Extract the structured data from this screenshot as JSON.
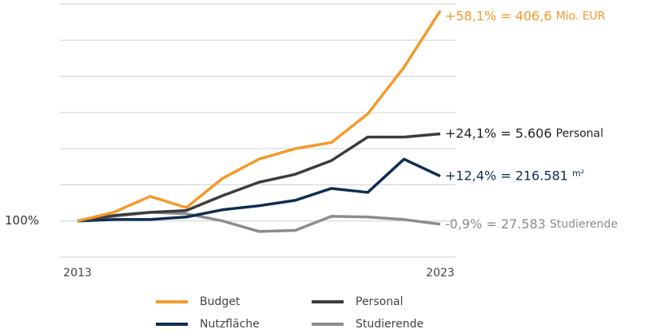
{
  "chart_data": {
    "type": "line",
    "categories": [
      "2013",
      null,
      null,
      null,
      null,
      null,
      null,
      null,
      null,
      null,
      "2023"
    ],
    "ylim": [
      90,
      160
    ],
    "yticks": [
      {
        "value": 100,
        "label": "100%"
      }
    ],
    "gridlines": [
      90,
      100,
      110,
      120,
      130,
      140,
      150,
      160
    ],
    "series": [
      {
        "name": "Budget",
        "color": "#f39a2b",
        "label_color": "#f39a2b",
        "end_label": "+58,1% = 406,6",
        "end_unit": "Mio. EUR",
        "values": [
          100,
          102.4,
          106.8,
          103.7,
          111.8,
          117.1,
          120,
          121.7,
          129.6,
          142.5,
          158.1
        ]
      },
      {
        "name": "Personal",
        "color": "#3c3c3c",
        "label_color": "#222222",
        "end_label": "+24,1% = 5.606",
        "end_unit": "Personal",
        "values": [
          100,
          101.5,
          102.4,
          102.9,
          107,
          110.7,
          112.9,
          116.7,
          123.2,
          123.2,
          124.1
        ]
      },
      {
        "name": "Nutzfläche",
        "color": "#0d2d52",
        "label_color": "#0d2d52",
        "end_label": "+12,4% = 216.581",
        "end_unit": "m²",
        "values": [
          100,
          100.4,
          100.4,
          101.1,
          103.1,
          104.2,
          105.7,
          109,
          107.9,
          117.1,
          112.4
        ]
      },
      {
        "name": "Studierende",
        "color": "#8c8c8c",
        "label_color": "#8c8c8c",
        "end_label": "-0,9% = 27.583",
        "end_unit": "Studierende",
        "values": [
          100,
          101.3,
          102.4,
          102,
          100,
          97.1,
          97.4,
          101.3,
          101.1,
          100.4,
          99.1
        ]
      }
    ]
  }
}
